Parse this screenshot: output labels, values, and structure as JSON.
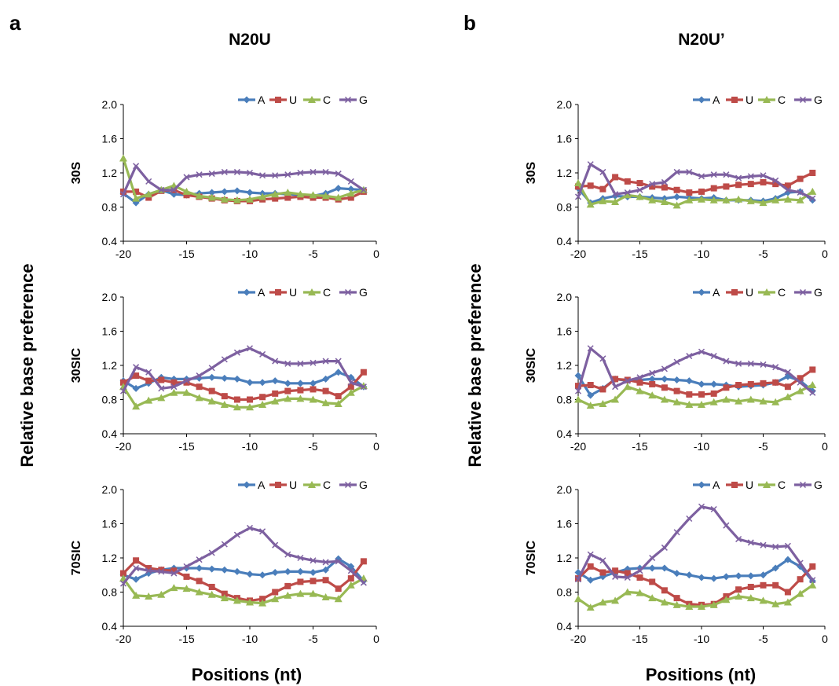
{
  "figure": {
    "panel_letters": [
      "a",
      "b"
    ],
    "panel_titles": [
      "N20U",
      "N20U’"
    ],
    "y_axis_label": "Relative base preference",
    "x_axis_label": "Positions (nt)"
  },
  "series_colors": {
    "A": "#4a7ebb",
    "U": "#be4b48",
    "C": "#98b954",
    "G": "#7d60a0"
  },
  "chart_data": [
    {
      "type": "line",
      "panel": "a",
      "row_label": "30S",
      "x": [
        -20,
        -19,
        -18,
        -17,
        -16,
        -15,
        -14,
        -13,
        -12,
        -11,
        -10,
        -9,
        -8,
        -7,
        -6,
        -5,
        -4,
        -3,
        -2,
        -1
      ],
      "xlim": [
        -20,
        0
      ],
      "ylim": [
        0.4,
        2.0
      ],
      "xticks": [
        "-20",
        "-15",
        "-10",
        "-5",
        "0"
      ],
      "yticks": [
        "0.4",
        "0.8",
        "1.2",
        "1.6",
        "2.0"
      ],
      "legend_position": "top-right",
      "series": [
        {
          "name": "A",
          "values": [
            0.96,
            0.85,
            0.95,
            1.0,
            0.95,
            0.94,
            0.96,
            0.97,
            0.98,
            0.99,
            0.97,
            0.96,
            0.96,
            0.95,
            0.94,
            0.93,
            0.96,
            1.02,
            1.01,
            1.0
          ]
        },
        {
          "name": "U",
          "values": [
            0.98,
            0.98,
            0.91,
            0.99,
            1.0,
            0.94,
            0.92,
            0.9,
            0.88,
            0.87,
            0.87,
            0.89,
            0.9,
            0.91,
            0.92,
            0.91,
            0.91,
            0.89,
            0.91,
            0.98
          ]
        },
        {
          "name": "C",
          "values": [
            1.37,
            0.9,
            0.95,
            1.0,
            1.05,
            0.98,
            0.93,
            0.91,
            0.89,
            0.88,
            0.89,
            0.92,
            0.95,
            0.97,
            0.95,
            0.94,
            0.93,
            0.91,
            0.96,
            1.0
          ]
        },
        {
          "name": "G",
          "values": [
            0.95,
            1.28,
            1.1,
            1.0,
            1.0,
            1.15,
            1.18,
            1.19,
            1.21,
            1.21,
            1.2,
            1.17,
            1.17,
            1.18,
            1.2,
            1.21,
            1.21,
            1.19,
            1.1,
            1.0
          ]
        }
      ]
    },
    {
      "type": "line",
      "panel": "a",
      "row_label": "30SIC",
      "x": [
        -20,
        -19,
        -18,
        -17,
        -16,
        -15,
        -14,
        -13,
        -12,
        -11,
        -10,
        -9,
        -8,
        -7,
        -6,
        -5,
        -4,
        -3,
        -2,
        -1
      ],
      "xlim": [
        -20,
        0
      ],
      "ylim": [
        0.4,
        2.0
      ],
      "xticks": [
        "-20",
        "-15",
        "-10",
        "-5",
        "0"
      ],
      "yticks": [
        "0.4",
        "0.8",
        "1.2",
        "1.6",
        "2.0"
      ],
      "legend_position": "top-right",
      "series": [
        {
          "name": "A",
          "values": [
            1.02,
            0.93,
            0.99,
            1.06,
            1.04,
            1.04,
            1.05,
            1.06,
            1.05,
            1.04,
            1.0,
            1.0,
            1.02,
            0.99,
            0.99,
            0.99,
            1.04,
            1.12,
            1.06,
            0.95
          ]
        },
        {
          "name": "U",
          "values": [
            1.0,
            1.08,
            1.02,
            1.03,
            1.0,
            1.0,
            0.95,
            0.9,
            0.84,
            0.8,
            0.8,
            0.83,
            0.87,
            0.9,
            0.91,
            0.92,
            0.9,
            0.84,
            0.95,
            1.12
          ]
        },
        {
          "name": "C",
          "values": [
            0.95,
            0.72,
            0.79,
            0.82,
            0.88,
            0.88,
            0.82,
            0.78,
            0.74,
            0.71,
            0.71,
            0.74,
            0.78,
            0.81,
            0.81,
            0.8,
            0.76,
            0.75,
            0.88,
            0.96
          ]
        },
        {
          "name": "G",
          "values": [
            0.9,
            1.18,
            1.12,
            0.93,
            0.95,
            1.02,
            1.08,
            1.17,
            1.27,
            1.35,
            1.4,
            1.33,
            1.25,
            1.22,
            1.22,
            1.23,
            1.25,
            1.25,
            1.0,
            0.95
          ]
        }
      ]
    },
    {
      "type": "line",
      "panel": "a",
      "row_label": "70SIC",
      "x": [
        -20,
        -19,
        -18,
        -17,
        -16,
        -15,
        -14,
        -13,
        -12,
        -11,
        -10,
        -9,
        -8,
        -7,
        -6,
        -5,
        -4,
        -3,
        -2,
        -1
      ],
      "xlim": [
        -20,
        0
      ],
      "ylim": [
        0.4,
        2.0
      ],
      "xticks": [
        "-20",
        "-15",
        "-10",
        "-5",
        "0"
      ],
      "yticks": [
        "0.4",
        "0.8",
        "1.2",
        "1.6",
        "2.0"
      ],
      "legend_position": "top-right",
      "series": [
        {
          "name": "A",
          "values": [
            1.0,
            0.95,
            1.02,
            1.06,
            1.08,
            1.08,
            1.08,
            1.07,
            1.06,
            1.04,
            1.01,
            1.0,
            1.03,
            1.04,
            1.04,
            1.03,
            1.06,
            1.19,
            1.1,
            0.93
          ]
        },
        {
          "name": "U",
          "values": [
            1.02,
            1.17,
            1.08,
            1.06,
            1.05,
            0.98,
            0.93,
            0.86,
            0.78,
            0.73,
            0.7,
            0.72,
            0.8,
            0.87,
            0.92,
            0.93,
            0.94,
            0.84,
            0.96,
            1.16
          ]
        },
        {
          "name": "C",
          "values": [
            0.96,
            0.76,
            0.75,
            0.77,
            0.85,
            0.84,
            0.8,
            0.77,
            0.73,
            0.7,
            0.68,
            0.67,
            0.72,
            0.76,
            0.78,
            0.78,
            0.74,
            0.72,
            0.88,
            0.96
          ]
        },
        {
          "name": "G",
          "values": [
            0.9,
            1.08,
            1.05,
            1.04,
            1.02,
            1.1,
            1.18,
            1.26,
            1.36,
            1.47,
            1.55,
            1.51,
            1.35,
            1.24,
            1.2,
            1.17,
            1.15,
            1.16,
            1.05,
            0.91
          ]
        }
      ]
    },
    {
      "type": "line",
      "panel": "b",
      "row_label": "30S",
      "x": [
        -20,
        -19,
        -18,
        -17,
        -16,
        -15,
        -14,
        -13,
        -12,
        -11,
        -10,
        -9,
        -8,
        -7,
        -6,
        -5,
        -4,
        -3,
        -2,
        -1
      ],
      "xlim": [
        -20,
        0
      ],
      "ylim": [
        0.4,
        2.0
      ],
      "xticks": [
        "-20",
        "-15",
        "-10",
        "-5",
        "0"
      ],
      "yticks": [
        "0.4",
        "0.8",
        "1.2",
        "1.6",
        "2.0"
      ],
      "legend_position": "top-right",
      "series": [
        {
          "name": "A",
          "values": [
            1.02,
            0.85,
            0.9,
            0.93,
            0.92,
            0.92,
            0.91,
            0.9,
            0.92,
            0.91,
            0.9,
            0.91,
            0.88,
            0.88,
            0.88,
            0.87,
            0.9,
            0.97,
            0.98,
            0.88
          ]
        },
        {
          "name": "U",
          "values": [
            1.04,
            1.05,
            1.01,
            1.15,
            1.1,
            1.08,
            1.04,
            1.03,
            1.0,
            0.97,
            0.98,
            1.02,
            1.04,
            1.06,
            1.07,
            1.09,
            1.07,
            1.05,
            1.13,
            1.2
          ]
        },
        {
          "name": "C",
          "values": [
            1.08,
            0.83,
            0.87,
            0.86,
            0.94,
            0.92,
            0.88,
            0.86,
            0.82,
            0.88,
            0.89,
            0.88,
            0.88,
            0.89,
            0.87,
            0.85,
            0.88,
            0.89,
            0.88,
            0.98
          ]
        },
        {
          "name": "G",
          "values": [
            0.92,
            1.3,
            1.21,
            0.95,
            0.97,
            1.0,
            1.07,
            1.09,
            1.21,
            1.21,
            1.16,
            1.18,
            1.18,
            1.14,
            1.16,
            1.17,
            1.11,
            1.0,
            0.97,
            0.9
          ]
        }
      ]
    },
    {
      "type": "line",
      "panel": "b",
      "row_label": "30SIC",
      "x": [
        -20,
        -19,
        -18,
        -17,
        -16,
        -15,
        -14,
        -13,
        -12,
        -11,
        -10,
        -9,
        -8,
        -7,
        -6,
        -5,
        -4,
        -3,
        -2,
        -1
      ],
      "xlim": [
        -20,
        0
      ],
      "ylim": [
        0.4,
        2.0
      ],
      "xticks": [
        "-20",
        "-15",
        "-10",
        "-5",
        "0"
      ],
      "yticks": [
        "0.4",
        "0.8",
        "1.2",
        "1.6",
        "2.0"
      ],
      "legend_position": "top-right",
      "series": [
        {
          "name": "A",
          "values": [
            1.08,
            0.85,
            0.93,
            1.04,
            1.02,
            1.03,
            1.04,
            1.04,
            1.03,
            1.02,
            0.98,
            0.98,
            0.97,
            0.95,
            0.96,
            0.97,
            1.0,
            1.07,
            1.02,
            0.9
          ]
        },
        {
          "name": "U",
          "values": [
            0.96,
            0.97,
            0.92,
            1.04,
            1.03,
            1.0,
            0.98,
            0.94,
            0.9,
            0.86,
            0.86,
            0.87,
            0.94,
            0.97,
            0.98,
            0.99,
            1.0,
            0.95,
            1.05,
            1.15
          ]
        },
        {
          "name": "C",
          "values": [
            0.8,
            0.73,
            0.75,
            0.8,
            0.95,
            0.9,
            0.85,
            0.8,
            0.77,
            0.74,
            0.74,
            0.77,
            0.8,
            0.78,
            0.8,
            0.78,
            0.77,
            0.83,
            0.9,
            0.97
          ]
        },
        {
          "name": "G",
          "values": [
            0.9,
            1.4,
            1.28,
            0.95,
            1.02,
            1.06,
            1.11,
            1.16,
            1.24,
            1.31,
            1.36,
            1.31,
            1.25,
            1.22,
            1.22,
            1.21,
            1.18,
            1.12,
            1.0,
            0.88
          ]
        }
      ]
    },
    {
      "type": "line",
      "panel": "b",
      "row_label": "70SIC",
      "x": [
        -20,
        -19,
        -18,
        -17,
        -16,
        -15,
        -14,
        -13,
        -12,
        -11,
        -10,
        -9,
        -8,
        -7,
        -6,
        -5,
        -4,
        -3,
        -2,
        -1
      ],
      "xlim": [
        -20,
        0
      ],
      "ylim": [
        0.4,
        2.0
      ],
      "xticks": [
        "-20",
        "-15",
        "-10",
        "-5",
        "0"
      ],
      "yticks": [
        "0.4",
        "0.8",
        "1.2",
        "1.6",
        "2.0"
      ],
      "legend_position": "top-right",
      "series": [
        {
          "name": "A",
          "values": [
            1.03,
            0.94,
            0.98,
            1.03,
            1.07,
            1.08,
            1.08,
            1.08,
            1.02,
            1.0,
            0.97,
            0.96,
            0.98,
            0.99,
            0.99,
            1.0,
            1.08,
            1.18,
            1.1,
            0.93
          ]
        },
        {
          "name": "U",
          "values": [
            0.96,
            1.1,
            1.03,
            1.05,
            1.02,
            0.97,
            0.92,
            0.82,
            0.73,
            0.66,
            0.65,
            0.66,
            0.75,
            0.83,
            0.86,
            0.88,
            0.88,
            0.8,
            0.95,
            1.1
          ]
        },
        {
          "name": "C",
          "values": [
            0.72,
            0.62,
            0.68,
            0.7,
            0.8,
            0.79,
            0.73,
            0.68,
            0.65,
            0.63,
            0.63,
            0.65,
            0.71,
            0.75,
            0.73,
            0.7,
            0.66,
            0.68,
            0.78,
            0.88
          ]
        },
        {
          "name": "G",
          "values": [
            0.95,
            1.24,
            1.17,
            0.98,
            0.97,
            1.05,
            1.2,
            1.32,
            1.5,
            1.66,
            1.8,
            1.77,
            1.58,
            1.42,
            1.38,
            1.35,
            1.33,
            1.34,
            1.14,
            0.94
          ]
        }
      ]
    }
  ]
}
